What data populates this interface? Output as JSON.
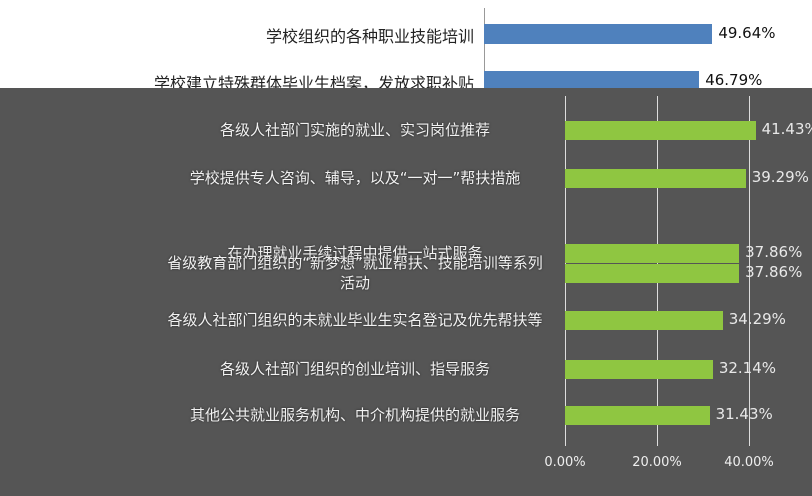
{
  "chart_data": {
    "type": "bar",
    "orientation": "horizontal",
    "categories": [
      "学校组织的各种职业技能培训",
      "学校建立特殊群体毕业生档案，发放求职补贴",
      "各级人社部门实施的就业、实习岗位推荐",
      "学校提供专人咨询、辅导，以及“一对一”帮扶措施",
      "在办理就业手续过程中提供一站式服务",
      "省级教育部门组织的“新梦想”就业帮扶、技能培训等系列活动",
      "各级人社部门组织的未就业毕业生实名登记及优先帮扶等",
      "各级人社部门组织的创业培训、指导服务",
      "其他公共就业服务机构、中介机构提供的就业服务"
    ],
    "values": [
      49.64,
      46.79,
      41.43,
      39.29,
      37.86,
      37.86,
      34.29,
      32.14,
      31.43
    ],
    "value_labels": [
      "49.64%",
      "46.79%",
      "41.43%",
      "39.29%",
      "37.86%",
      "37.86%",
      "34.29%",
      "32.14%",
      "31.43%"
    ],
    "colors": [
      "#4f81bd",
      "#4f81bd",
      "#8fc641",
      "#8fc641",
      "#8fc641",
      "#8fc641",
      "#8fc641",
      "#8fc641",
      "#8fc641"
    ],
    "xlim": [
      0,
      53.7
    ],
    "xticks": [
      {
        "value": 0,
        "label": "0.00%"
      },
      {
        "value": 20,
        "label": "20.00%"
      },
      {
        "value": 40,
        "label": "40.00%"
      }
    ],
    "grid": true
  }
}
